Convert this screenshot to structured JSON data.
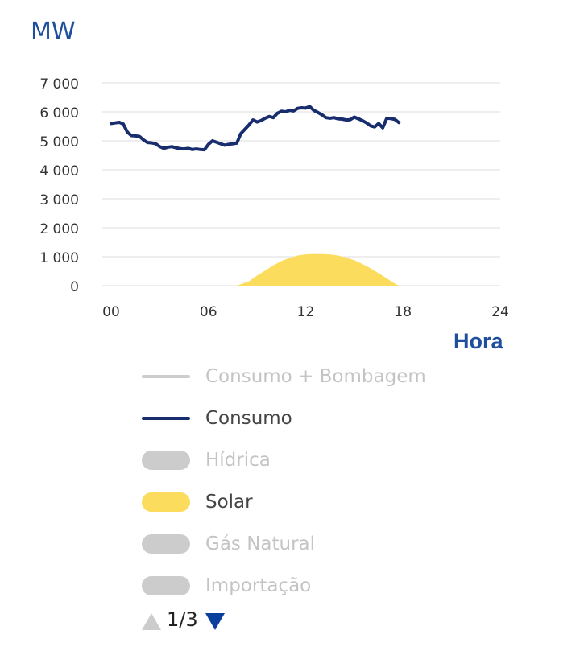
{
  "unit_label": "MW",
  "x_axis_title": "Hora",
  "colors": {
    "accent": "#1f4e9c",
    "consumo": "#172d6e",
    "solar": "#fbdc5c",
    "inactive": "#cccccc",
    "grid": "#dddddd",
    "tick_text": "#333333",
    "active_text": "#444444",
    "inactive_text": "#c4c4c4",
    "pager_down": "#0b3f9e",
    "pager_up": "#cccccc"
  },
  "chart_data": {
    "type": "line",
    "xlabel": "Hora",
    "ylabel": "MW",
    "xlim": [
      0,
      24
    ],
    "ylim": [
      0,
      7000
    ],
    "x_ticks": [
      0,
      6,
      12,
      18,
      24
    ],
    "x_tick_labels": [
      "00",
      "06",
      "12",
      "18",
      "24"
    ],
    "y_ticks": [
      0,
      1000,
      2000,
      3000,
      4000,
      5000,
      6000,
      7000
    ],
    "y_tick_labels": [
      "0",
      "1 000",
      "2 000",
      "3 000",
      "4 000",
      "5 000",
      "6 000",
      "7 000"
    ],
    "grid": true,
    "series": [
      {
        "name": "Consumo",
        "kind": "line",
        "x": [
          0,
          0.25,
          0.5,
          0.75,
          1,
          1.25,
          1.5,
          1.75,
          2,
          2.25,
          2.5,
          2.75,
          3,
          3.25,
          3.5,
          3.75,
          4,
          4.25,
          4.5,
          4.75,
          5,
          5.25,
          5.5,
          5.75,
          6,
          6.25,
          6.5,
          6.75,
          7,
          7.25,
          7.5,
          7.75,
          8,
          8.25,
          8.5,
          8.75,
          9,
          9.25,
          9.5,
          9.75,
          10,
          10.25,
          10.5,
          10.75,
          11,
          11.25,
          11.5,
          11.75,
          12,
          12.25,
          12.5,
          12.75,
          13,
          13.25,
          13.5,
          13.75,
          14,
          14.25,
          14.5,
          14.75,
          15,
          15.25,
          15.5,
          15.75,
          16,
          16.25,
          16.5,
          16.75,
          17,
          17.25,
          17.5,
          17.75
        ],
        "y": [
          5600,
          5620,
          5640,
          5580,
          5300,
          5180,
          5170,
          5150,
          5030,
          4940,
          4930,
          4900,
          4800,
          4740,
          4780,
          4800,
          4760,
          4730,
          4720,
          4740,
          4700,
          4720,
          4700,
          4690,
          4880,
          5000,
          4950,
          4900,
          4850,
          4880,
          4900,
          4920,
          5250,
          5400,
          5550,
          5720,
          5650,
          5700,
          5780,
          5840,
          5800,
          5950,
          6020,
          6000,
          6050,
          6030,
          6120,
          6140,
          6130,
          6180,
          6050,
          5980,
          5900,
          5800,
          5780,
          5800,
          5760,
          5750,
          5720,
          5730,
          5820,
          5760,
          5700,
          5620,
          5520,
          5480,
          5600,
          5450,
          5780,
          5770,
          5740,
          5630
        ]
      },
      {
        "name": "Solar",
        "kind": "area",
        "x": [
          7.75,
          8.5,
          9,
          9.5,
          10,
          10.5,
          11,
          11.5,
          12,
          12.5,
          13,
          13.5,
          14,
          14.5,
          15,
          15.5,
          16,
          16.5,
          17,
          17.5,
          17.75
        ],
        "y": [
          0,
          150,
          350,
          520,
          700,
          850,
          960,
          1040,
          1080,
          1095,
          1090,
          1080,
          1040,
          970,
          880,
          750,
          600,
          430,
          250,
          70,
          0
        ]
      }
    ]
  },
  "legend": [
    {
      "name": "legend-consumo-bombagem",
      "label": "Consumo + Bombagem",
      "marker": "line",
      "active": false
    },
    {
      "name": "legend-consumo",
      "label": "Consumo",
      "marker": "line",
      "active": true,
      "color_key": "consumo"
    },
    {
      "name": "legend-hidrica",
      "label": "Hídrica",
      "marker": "area",
      "active": false
    },
    {
      "name": "legend-solar",
      "label": "Solar",
      "marker": "area",
      "active": true,
      "color_key": "solar"
    },
    {
      "name": "legend-gas-natural",
      "label": "Gás Natural",
      "marker": "area",
      "active": false
    },
    {
      "name": "legend-importacao",
      "label": "Importação",
      "marker": "area",
      "active": false
    }
  ],
  "pager": {
    "text": "1/3",
    "up_icon": "triangle-up-icon",
    "down_icon": "triangle-down-icon"
  }
}
